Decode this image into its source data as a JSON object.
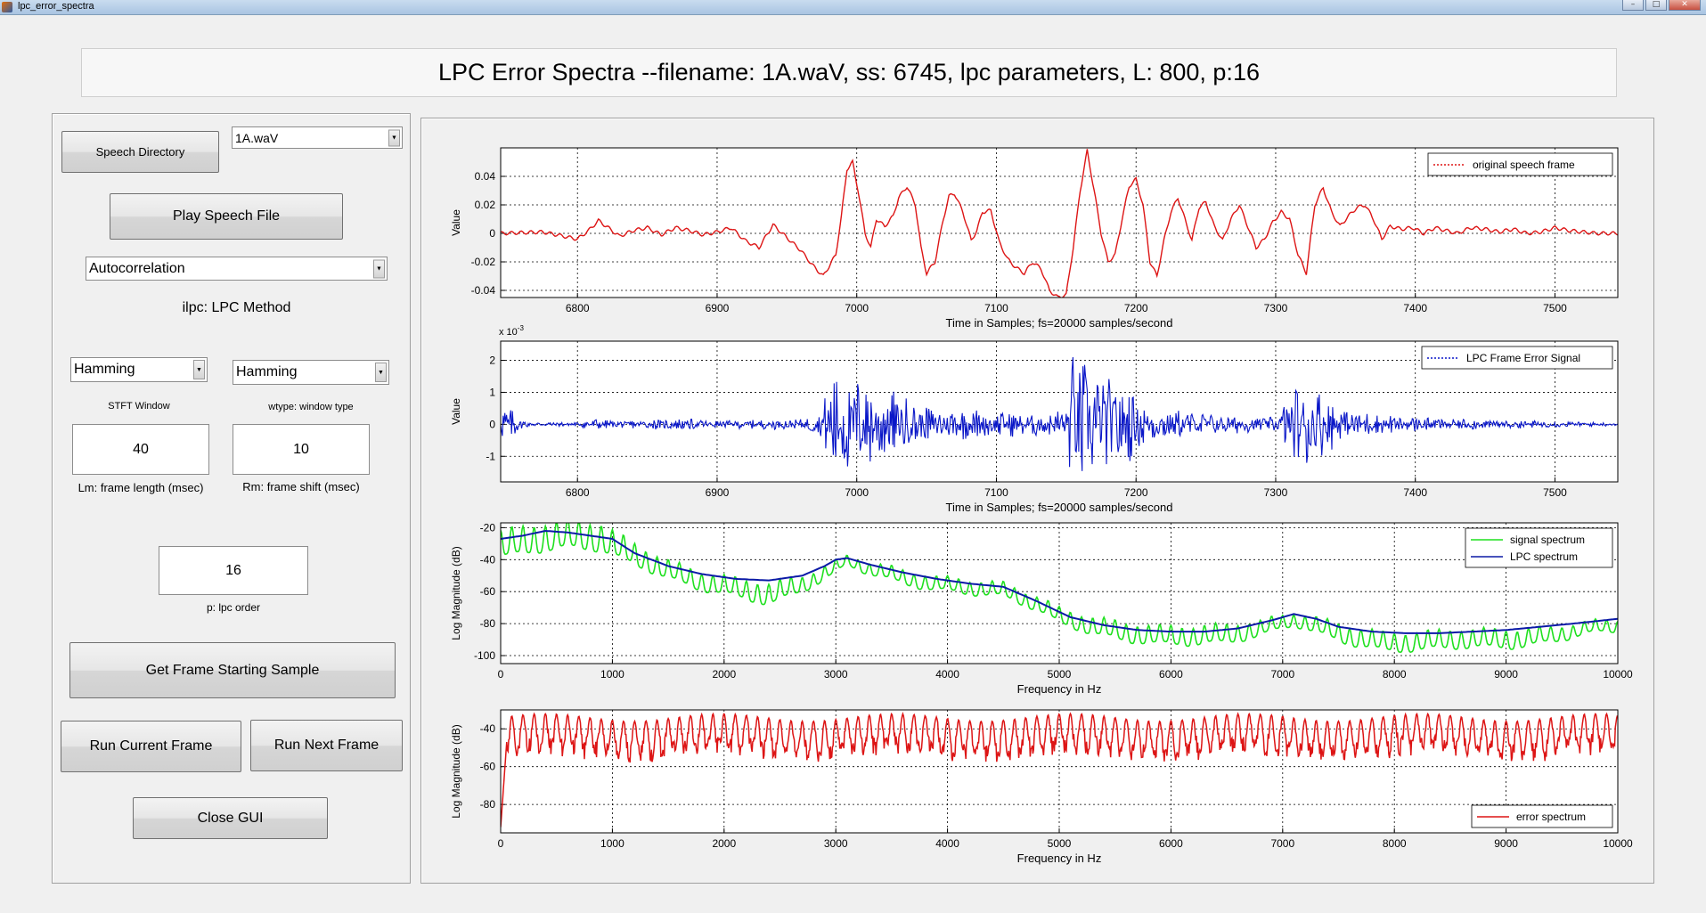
{
  "window": {
    "title": "lpc_error_spectra"
  },
  "banner": {
    "text": "LPC Error Spectra --filename: 1A.waV, ss: 6745, lpc parameters, L: 800, p:16"
  },
  "controls": {
    "speech_directory_label": "Speech Directory",
    "file_select_value": "1A.waV",
    "play_label": "Play Speech File",
    "method_select_value": "Autocorrelation",
    "method_caption": "ilpc: LPC Method",
    "stft_window_value": "Hamming",
    "stft_window_caption": "STFT Window",
    "wtype_value": "Hamming",
    "wtype_caption": "wtype: window type",
    "lm_value": "40",
    "lm_caption": "Lm: frame length (msec)",
    "rm_value": "10",
    "rm_caption": "Rm: frame shift (msec)",
    "p_value": "16",
    "p_caption": "p: lpc order",
    "get_frame_label": "Get Frame Starting Sample",
    "run_current_label": "Run Current Frame",
    "run_next_label": "Run Next Frame",
    "close_label": "Close GUI"
  },
  "colors": {
    "signal_red": "#dd1515",
    "error_blue": "#0a17c8",
    "spectrum_green": "#1fe01f",
    "lpc_navy": "#0b1aa6"
  },
  "chart_data": [
    {
      "type": "line",
      "xlabel": "Time in Samples; fs=20000 samples/second",
      "ylabel": "Value",
      "xlim": [
        6745,
        7545
      ],
      "ylim": [
        -0.045,
        0.06
      ],
      "xticks": [
        6800,
        6900,
        7000,
        7100,
        7200,
        7300,
        7400,
        7500
      ],
      "yticks": [
        -0.04,
        -0.02,
        0,
        0.02,
        0.04
      ],
      "ytick_labels": [
        "-0.04",
        "-0.02",
        "0",
        "0.02",
        "0.04"
      ],
      "grid": true,
      "legend_position": "top-right",
      "series": [
        {
          "name": "original speech frame",
          "color": "#dd1515",
          "style": "solid",
          "x": [
            6745,
            6760,
            6775,
            6790,
            6800,
            6808,
            6815,
            6822,
            6830,
            6840,
            6850,
            6860,
            6870,
            6880,
            6890,
            6900,
            6910,
            6920,
            6930,
            6940,
            6950,
            6960,
            6968,
            6976,
            6985,
            6989,
            6993,
            6997,
            7001,
            7006,
            7010,
            7014,
            7020,
            7026,
            7030,
            7036,
            7042,
            7046,
            7050,
            7056,
            7062,
            7066,
            7070,
            7076,
            7082,
            7086,
            7090,
            7096,
            7102,
            7108,
            7114,
            7120,
            7126,
            7132,
            7138,
            7144,
            7150,
            7155,
            7160,
            7165,
            7170,
            7175,
            7180,
            7185,
            7190,
            7195,
            7200,
            7205,
            7210,
            7215,
            7220,
            7225,
            7230,
            7235,
            7240,
            7245,
            7250,
            7256,
            7262,
            7268,
            7274,
            7280,
            7286,
            7292,
            7298,
            7304,
            7310,
            7316,
            7322,
            7328,
            7334,
            7340,
            7346,
            7352,
            7358,
            7364,
            7370,
            7376,
            7382,
            7390,
            7398,
            7406,
            7414,
            7422,
            7430,
            7440,
            7450,
            7460,
            7470,
            7480,
            7490,
            7500,
            7510,
            7520,
            7530,
            7545
          ],
          "y": [
            0,
            0.0005,
            0.001,
            -0.002,
            -0.004,
            0.002,
            0.009,
            0.004,
            -0.002,
            0.002,
            0.004,
            -0.001,
            0.004,
            0.002,
            -0.001,
            0.001,
            0.004,
            -0.005,
            -0.01,
            0.006,
            -0.003,
            -0.012,
            -0.022,
            -0.03,
            -0.015,
            0.012,
            0.045,
            0.05,
            0.03,
            0.0,
            -0.01,
            0.01,
            0.005,
            0.012,
            0.025,
            0.033,
            0.02,
            -0.01,
            -0.028,
            -0.02,
            0.01,
            0.026,
            0.028,
            0.015,
            -0.005,
            0.002,
            0.015,
            0.016,
            -0.006,
            -0.018,
            -0.024,
            -0.028,
            -0.02,
            -0.025,
            -0.04,
            -0.045,
            -0.043,
            -0.01,
            0.03,
            0.058,
            0.03,
            0.0,
            -0.02,
            -0.015,
            0.01,
            0.033,
            0.038,
            0.02,
            -0.02,
            -0.03,
            -0.005,
            0.015,
            0.025,
            0.01,
            -0.005,
            0.018,
            0.022,
            0.005,
            -0.005,
            0.01,
            0.02,
            0.005,
            -0.01,
            -0.004,
            0.008,
            0.015,
            0.01,
            -0.015,
            -0.028,
            0.02,
            0.032,
            0.015,
            0.005,
            0.012,
            0.018,
            0.02,
            0.01,
            -0.004,
            0.005,
            0.003,
            0.004,
            0.0,
            0.004,
            0.002,
            0.0,
            0.004,
            0.003,
            0.001,
            0.003,
            0.0,
            0.001,
            0.004,
            0.002,
            0.001,
            0.0,
            0.0
          ]
        }
      ]
    },
    {
      "type": "line",
      "xlabel": "Time in Samples; fs=20000 samples/second",
      "ylabel": "Value",
      "scale_label": "x 10",
      "scale_exponent": "-3",
      "xlim": [
        6745,
        7545
      ],
      "ylim": [
        -1.8,
        2.6
      ],
      "xticks": [
        6800,
        6900,
        7000,
        7100,
        7200,
        7300,
        7400,
        7500
      ],
      "yticks": [
        -1,
        0,
        1,
        2
      ],
      "ytick_labels": [
        "-1",
        "0",
        "1",
        "2"
      ],
      "grid": true,
      "legend_position": "top-right",
      "series": [
        {
          "name": "LPC Frame Error Signal",
          "color": "#0a17c8",
          "style": "solid",
          "noise_envelope": [
            [
              6745,
              0.05
            ],
            [
              6747,
              0.8
            ],
            [
              6752,
              0.6
            ],
            [
              6758,
              0.25
            ],
            [
              6765,
              0.07
            ],
            [
              6800,
              0.08
            ],
            [
              6810,
              0.2
            ],
            [
              6830,
              0.12
            ],
            [
              6850,
              0.15
            ],
            [
              6870,
              0.2
            ],
            [
              6900,
              0.12
            ],
            [
              6930,
              0.15
            ],
            [
              6960,
              0.18
            ],
            [
              6975,
              0.4
            ],
            [
              6980,
              1.9
            ],
            [
              6990,
              1.6
            ],
            [
              7010,
              1.4
            ],
            [
              7030,
              1.0
            ],
            [
              7050,
              0.6
            ],
            [
              7080,
              0.5
            ],
            [
              7110,
              0.4
            ],
            [
              7140,
              0.4
            ],
            [
              7150,
              0.7
            ],
            [
              7155,
              2.5
            ],
            [
              7165,
              2.0
            ],
            [
              7180,
              1.7
            ],
            [
              7195,
              1.2
            ],
            [
              7210,
              0.6
            ],
            [
              7240,
              0.4
            ],
            [
              7270,
              0.3
            ],
            [
              7300,
              0.25
            ],
            [
              7320,
              1.6
            ],
            [
              7335,
              1.0
            ],
            [
              7350,
              0.5
            ],
            [
              7380,
              0.3
            ],
            [
              7420,
              0.2
            ],
            [
              7460,
              0.15
            ],
            [
              7500,
              0.1
            ],
            [
              7545,
              0.05
            ]
          ]
        }
      ]
    },
    {
      "type": "line",
      "xlabel": "Frequency in Hz",
      "ylabel": "Log Magnitude (dB)",
      "xlim": [
        0,
        10000
      ],
      "ylim": [
        -105,
        -17
      ],
      "xticks": [
        0,
        1000,
        2000,
        3000,
        4000,
        5000,
        6000,
        7000,
        8000,
        9000,
        10000
      ],
      "yticks": [
        -100,
        -80,
        -60,
        -40,
        -20
      ],
      "ytick_labels": [
        "-100",
        "-80",
        "-60",
        "-40",
        "-20"
      ],
      "grid": true,
      "legend_position": "top-right",
      "series": [
        {
          "name": "signal spectrum",
          "color": "#1fe01f",
          "style": "solid",
          "x": [
            0,
            300,
            600,
            900,
            1200,
            1500,
            1800,
            2100,
            2400,
            2700,
            3000,
            3100,
            3300,
            3600,
            3900,
            4200,
            4500,
            4800,
            5000,
            5300,
            5600,
            5900,
            6200,
            6500,
            6800,
            7100,
            7300,
            7600,
            7900,
            8200,
            8500,
            8800,
            9100,
            9400,
            9700,
            10000
          ],
          "y": [
            -28,
            -25,
            -22,
            -24,
            -35,
            -45,
            -52,
            -56,
            -60,
            -54,
            -44,
            -40,
            -44,
            -50,
            -54,
            -56,
            -58,
            -66,
            -74,
            -80,
            -84,
            -86,
            -86,
            -85,
            -82,
            -76,
            -80,
            -86,
            -90,
            -90,
            -88,
            -88,
            -88,
            -86,
            -82,
            -80
          ],
          "ripple_amp": [
            18,
            18,
            18,
            18,
            14,
            12,
            12,
            12,
            14,
            10,
            8,
            6,
            8,
            9,
            9,
            9,
            9,
            9,
            10,
            11,
            12,
            12,
            12,
            12,
            10,
            8,
            10,
            12,
            12,
            12,
            12,
            12,
            12,
            10,
            8,
            8
          ]
        },
        {
          "name": "LPC spectrum",
          "color": "#0b1aa6",
          "style": "solid",
          "x": [
            0,
            200,
            400,
            600,
            800,
            1000,
            1200,
            1500,
            1800,
            2100,
            2400,
            2700,
            2900,
            3000,
            3100,
            3300,
            3600,
            3900,
            4200,
            4500,
            4800,
            5100,
            5400,
            5700,
            6000,
            6300,
            6600,
            6900,
            7100,
            7300,
            7500,
            7800,
            8100,
            8400,
            8700,
            9000,
            9300,
            9600,
            10000
          ],
          "y": [
            -27,
            -25,
            -22,
            -23,
            -25,
            -27,
            -36,
            -44,
            -49,
            -52,
            -53,
            -50,
            -44,
            -40,
            -39,
            -43,
            -48,
            -52,
            -55,
            -57,
            -66,
            -76,
            -81,
            -84,
            -85,
            -85,
            -83,
            -78,
            -74,
            -77,
            -82,
            -85,
            -86,
            -86,
            -85,
            -84,
            -82,
            -80,
            -77
          ]
        }
      ]
    },
    {
      "type": "line",
      "xlabel": "Frequency in Hz",
      "ylabel": "Log Magnitude (dB)",
      "xlim": [
        0,
        10000
      ],
      "ylim": [
        -95,
        -30
      ],
      "xticks": [
        0,
        1000,
        2000,
        3000,
        4000,
        5000,
        6000,
        7000,
        8000,
        9000,
        10000
      ],
      "yticks": [
        -80,
        -60,
        -40
      ],
      "ytick_labels": [
        "-80",
        "-60",
        "-40"
      ],
      "grid": true,
      "legend_position": "bottom-right",
      "series": [
        {
          "name": "error spectrum",
          "color": "#dd1515",
          "style": "solid",
          "baseline_db": -42,
          "ripple_depth_db": 18,
          "start_db": -92
        }
      ]
    }
  ]
}
